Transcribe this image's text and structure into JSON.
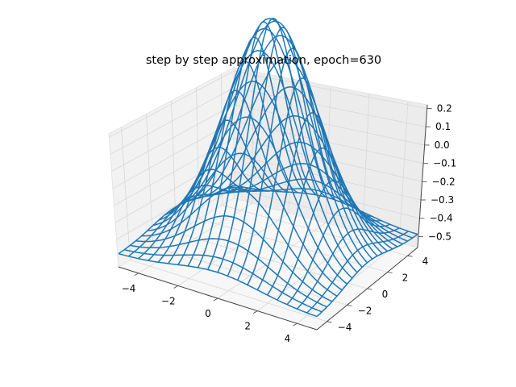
{
  "chart_data": {
    "type": "surface-wireframe",
    "title": "step by step approximation, epoch=630",
    "xlabel": "",
    "ylabel": "",
    "zlabel": "",
    "x_ticks": [
      "−4",
      "−2",
      "0",
      "2",
      "4"
    ],
    "y_ticks": [
      "−4",
      "−2",
      "0",
      "2",
      "4"
    ],
    "z_ticks": [
      "−0.5",
      "−0.4",
      "−0.3",
      "−0.2",
      "−0.1",
      "0.0",
      "0.1",
      "0.2"
    ],
    "xlim": [
      -5,
      5
    ],
    "ylim": [
      -5,
      5
    ],
    "zlim": [
      -0.56,
      0.22
    ],
    "grid": true,
    "surface": {
      "function": "gaussian_bump",
      "x_range": [
        -5,
        5
      ],
      "y_range": [
        -5,
        5
      ],
      "x_count": 21,
      "y_count": 21,
      "base": -0.52,
      "amplitude": 0.74,
      "sigma": 2.1,
      "z_max": 0.22,
      "z_min": -0.52
    },
    "wire_color": "#1f77b4"
  }
}
